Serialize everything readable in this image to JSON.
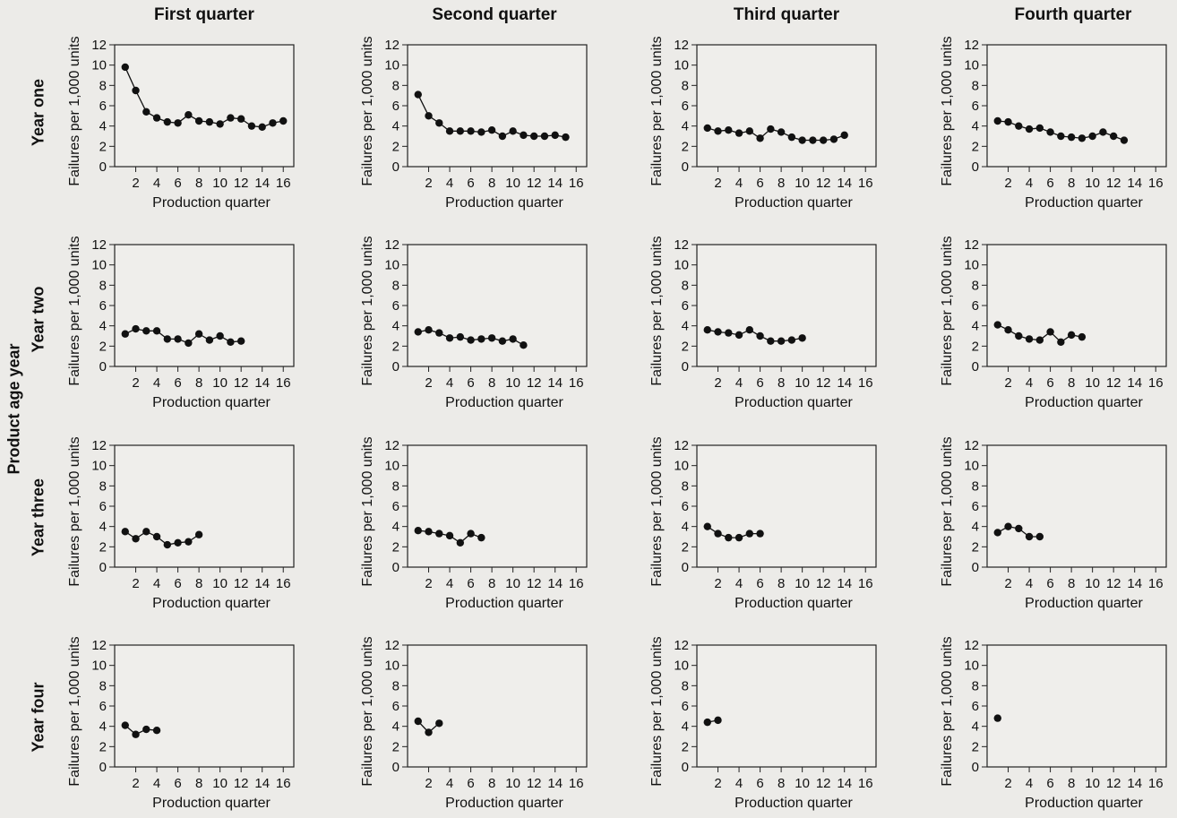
{
  "column_titles": [
    "First quarter",
    "Second quarter",
    "Third quarter",
    "Fourth quarter"
  ],
  "row_titles": [
    "Year one",
    "Year two",
    "Year three",
    "Year four"
  ],
  "outer_ylabel": "Product age year",
  "chart_data": [
    {
      "type": "line",
      "row": "Year one",
      "column": "First quarter",
      "x": [
        1,
        2,
        3,
        4,
        5,
        6,
        7,
        8,
        9,
        10,
        11,
        12,
        13,
        14,
        15,
        16
      ],
      "y": [
        9.8,
        7.5,
        5.4,
        4.8,
        4.4,
        4.3,
        5.1,
        4.5,
        4.4,
        4.2,
        4.8,
        4.7,
        4.0,
        3.9,
        4.3,
        4.5
      ],
      "xlabel": "Production quarter",
      "ylabel": "Failures per 1,000 units",
      "xlim": [
        0,
        17
      ],
      "ylim": [
        0,
        12
      ],
      "xticks": [
        2,
        4,
        6,
        8,
        10,
        12,
        14,
        16
      ],
      "yticks": [
        0,
        2,
        4,
        6,
        8,
        10,
        12
      ]
    },
    {
      "type": "line",
      "row": "Year one",
      "column": "Second quarter",
      "x": [
        1,
        2,
        3,
        4,
        5,
        6,
        7,
        8,
        9,
        10,
        11,
        12,
        13,
        14,
        15
      ],
      "y": [
        7.1,
        5.0,
        4.3,
        3.5,
        3.5,
        3.5,
        3.4,
        3.6,
        3.0,
        3.5,
        3.1,
        3.0,
        3.0,
        3.1,
        2.9
      ],
      "xlabel": "Production quarter",
      "ylabel": "Failures per 1,000 units",
      "xlim": [
        0,
        17
      ],
      "ylim": [
        0,
        12
      ],
      "xticks": [
        2,
        4,
        6,
        8,
        10,
        12,
        14,
        16
      ],
      "yticks": [
        0,
        2,
        4,
        6,
        8,
        10,
        12
      ]
    },
    {
      "type": "line",
      "row": "Year one",
      "column": "Third quarter",
      "x": [
        1,
        2,
        3,
        4,
        5,
        6,
        7,
        8,
        9,
        10,
        11,
        12,
        13,
        14
      ],
      "y": [
        3.8,
        3.5,
        3.6,
        3.3,
        3.5,
        2.8,
        3.7,
        3.4,
        2.9,
        2.6,
        2.6,
        2.6,
        2.7,
        3.1
      ],
      "xlabel": "Production quarter",
      "ylabel": "Failures per 1,000 units",
      "xlim": [
        0,
        17
      ],
      "ylim": [
        0,
        12
      ],
      "xticks": [
        2,
        4,
        6,
        8,
        10,
        12,
        14,
        16
      ],
      "yticks": [
        0,
        2,
        4,
        6,
        8,
        10,
        12
      ]
    },
    {
      "type": "line",
      "row": "Year one",
      "column": "Fourth quarter",
      "x": [
        1,
        2,
        3,
        4,
        5,
        6,
        7,
        8,
        9,
        10,
        11,
        12,
        13
      ],
      "y": [
        4.5,
        4.4,
        4.0,
        3.7,
        3.8,
        3.4,
        3.0,
        2.9,
        2.8,
        3.0,
        3.4,
        3.0,
        2.6
      ],
      "xlabel": "Production quarter",
      "ylabel": "Failures per 1,000 units",
      "xlim": [
        0,
        17
      ],
      "ylim": [
        0,
        12
      ],
      "xticks": [
        2,
        4,
        6,
        8,
        10,
        12,
        14,
        16
      ],
      "yticks": [
        0,
        2,
        4,
        6,
        8,
        10,
        12
      ]
    },
    {
      "type": "line",
      "row": "Year two",
      "column": "First quarter",
      "x": [
        1,
        2,
        3,
        4,
        5,
        6,
        7,
        8,
        9,
        10,
        11,
        12
      ],
      "y": [
        3.2,
        3.7,
        3.5,
        3.5,
        2.7,
        2.7,
        2.3,
        3.2,
        2.6,
        3.0,
        2.4,
        2.5
      ],
      "xlabel": "Production quarter",
      "ylabel": "Failures per 1,000 units",
      "xlim": [
        0,
        17
      ],
      "ylim": [
        0,
        12
      ],
      "xticks": [
        2,
        4,
        6,
        8,
        10,
        12,
        14,
        16
      ],
      "yticks": [
        0,
        2,
        4,
        6,
        8,
        10,
        12
      ]
    },
    {
      "type": "line",
      "row": "Year two",
      "column": "Second quarter",
      "x": [
        1,
        2,
        3,
        4,
        5,
        6,
        7,
        8,
        9,
        10,
        11
      ],
      "y": [
        3.4,
        3.6,
        3.3,
        2.8,
        2.9,
        2.6,
        2.7,
        2.8,
        2.5,
        2.7,
        2.1
      ],
      "xlabel": "Production quarter",
      "ylabel": "Failures per 1,000 units",
      "xlim": [
        0,
        17
      ],
      "ylim": [
        0,
        12
      ],
      "xticks": [
        2,
        4,
        6,
        8,
        10,
        12,
        14,
        16
      ],
      "yticks": [
        0,
        2,
        4,
        6,
        8,
        10,
        12
      ]
    },
    {
      "type": "line",
      "row": "Year two",
      "column": "Third quarter",
      "x": [
        1,
        2,
        3,
        4,
        5,
        6,
        7,
        8,
        9,
        10
      ],
      "y": [
        3.6,
        3.4,
        3.3,
        3.1,
        3.6,
        3.0,
        2.5,
        2.5,
        2.6,
        2.8
      ],
      "xlabel": "Production quarter",
      "ylabel": "Failures per 1,000 units",
      "xlim": [
        0,
        17
      ],
      "ylim": [
        0,
        12
      ],
      "xticks": [
        2,
        4,
        6,
        8,
        10,
        12,
        14,
        16
      ],
      "yticks": [
        0,
        2,
        4,
        6,
        8,
        10,
        12
      ]
    },
    {
      "type": "line",
      "row": "Year two",
      "column": "Fourth quarter",
      "x": [
        1,
        2,
        3,
        4,
        5,
        6,
        7,
        8,
        9
      ],
      "y": [
        4.1,
        3.6,
        3.0,
        2.7,
        2.6,
        3.4,
        2.4,
        3.1,
        2.9
      ],
      "xlabel": "Production quarter",
      "ylabel": "Failures per 1,000 units",
      "xlim": [
        0,
        17
      ],
      "ylim": [
        0,
        12
      ],
      "xticks": [
        2,
        4,
        6,
        8,
        10,
        12,
        14,
        16
      ],
      "yticks": [
        0,
        2,
        4,
        6,
        8,
        10,
        12
      ]
    },
    {
      "type": "line",
      "row": "Year three",
      "column": "First quarter",
      "x": [
        1,
        2,
        3,
        4,
        5,
        6,
        7,
        8
      ],
      "y": [
        3.5,
        2.8,
        3.5,
        3.0,
        2.2,
        2.4,
        2.5,
        3.2
      ],
      "xlabel": "Production quarter",
      "ylabel": "Failures per 1,000 units",
      "xlim": [
        0,
        17
      ],
      "ylim": [
        0,
        12
      ],
      "xticks": [
        2,
        4,
        6,
        8,
        10,
        12,
        14,
        16
      ],
      "yticks": [
        0,
        2,
        4,
        6,
        8,
        10,
        12
      ]
    },
    {
      "type": "line",
      "row": "Year three",
      "column": "Second quarter",
      "x": [
        1,
        2,
        3,
        4,
        5,
        6,
        7
      ],
      "y": [
        3.6,
        3.5,
        3.3,
        3.1,
        2.4,
        3.3,
        2.9
      ],
      "xlabel": "Production quarter",
      "ylabel": "Failures per 1,000 units",
      "xlim": [
        0,
        17
      ],
      "ylim": [
        0,
        12
      ],
      "xticks": [
        2,
        4,
        6,
        8,
        10,
        12,
        14,
        16
      ],
      "yticks": [
        0,
        2,
        4,
        6,
        8,
        10,
        12
      ]
    },
    {
      "type": "line",
      "row": "Year three",
      "column": "Third quarter",
      "x": [
        1,
        2,
        3,
        4,
        5,
        6
      ],
      "y": [
        4.0,
        3.3,
        2.9,
        2.9,
        3.3,
        3.3
      ],
      "xlabel": "Production quarter",
      "ylabel": "Failures per 1,000 units",
      "xlim": [
        0,
        17
      ],
      "ylim": [
        0,
        12
      ],
      "xticks": [
        2,
        4,
        6,
        8,
        10,
        12,
        14,
        16
      ],
      "yticks": [
        0,
        2,
        4,
        6,
        8,
        10,
        12
      ]
    },
    {
      "type": "line",
      "row": "Year three",
      "column": "Fourth quarter",
      "x": [
        1,
        2,
        3,
        4,
        5
      ],
      "y": [
        3.4,
        4.0,
        3.8,
        3.0,
        3.0
      ],
      "xlabel": "Production quarter",
      "ylabel": "Failures per 1,000 units",
      "xlim": [
        0,
        17
      ],
      "ylim": [
        0,
        12
      ],
      "xticks": [
        2,
        4,
        6,
        8,
        10,
        12,
        14,
        16
      ],
      "yticks": [
        0,
        2,
        4,
        6,
        8,
        10,
        12
      ]
    },
    {
      "type": "line",
      "row": "Year four",
      "column": "First quarter",
      "x": [
        1,
        2,
        3,
        4
      ],
      "y": [
        4.1,
        3.2,
        3.7,
        3.6
      ],
      "xlabel": "Production quarter",
      "ylabel": "Failures per 1,000 units",
      "xlim": [
        0,
        17
      ],
      "ylim": [
        0,
        12
      ],
      "xticks": [
        2,
        4,
        6,
        8,
        10,
        12,
        14,
        16
      ],
      "yticks": [
        0,
        2,
        4,
        6,
        8,
        10,
        12
      ]
    },
    {
      "type": "line",
      "row": "Year four",
      "column": "Second quarter",
      "x": [
        1,
        2,
        3
      ],
      "y": [
        4.5,
        3.4,
        4.3
      ],
      "xlabel": "Production quarter",
      "ylabel": "Failures per 1,000 units",
      "xlim": [
        0,
        17
      ],
      "ylim": [
        0,
        12
      ],
      "xticks": [
        2,
        4,
        6,
        8,
        10,
        12,
        14,
        16
      ],
      "yticks": [
        0,
        2,
        4,
        6,
        8,
        10,
        12
      ]
    },
    {
      "type": "line",
      "row": "Year four",
      "column": "Third quarter",
      "x": [
        1,
        2
      ],
      "y": [
        4.4,
        4.6
      ],
      "xlabel": "Production quarter",
      "ylabel": "Failures per 1,000 units",
      "xlim": [
        0,
        17
      ],
      "ylim": [
        0,
        12
      ],
      "xticks": [
        2,
        4,
        6,
        8,
        10,
        12,
        14,
        16
      ],
      "yticks": [
        0,
        2,
        4,
        6,
        8,
        10,
        12
      ]
    },
    {
      "type": "line",
      "row": "Year four",
      "column": "Fourth quarter",
      "x": [
        1
      ],
      "y": [
        4.8
      ],
      "xlabel": "Production quarter",
      "ylabel": "Failures per 1,000 units",
      "xlim": [
        0,
        17
      ],
      "ylim": [
        0,
        12
      ],
      "xticks": [
        2,
        4,
        6,
        8,
        10,
        12,
        14,
        16
      ],
      "yticks": [
        0,
        2,
        4,
        6,
        8,
        10,
        12
      ]
    }
  ]
}
